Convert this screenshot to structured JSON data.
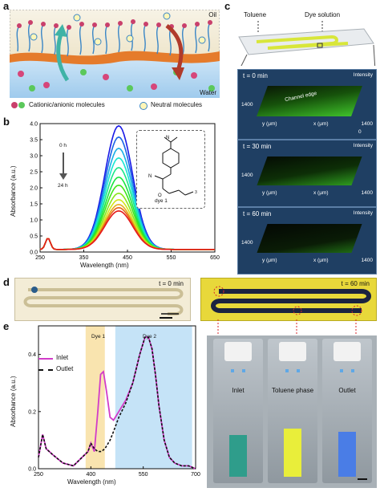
{
  "panel_labels": {
    "a": "a",
    "b": "b",
    "c": "c",
    "d": "d",
    "e": "e"
  },
  "panel_a": {
    "oil": "Oil",
    "water": "Water",
    "legend_cationic": "Cationic/anionic molecules",
    "legend_neutral": "Neutral molecules"
  },
  "panel_b": {
    "time_start": "0 h",
    "time_end": "24 h",
    "dye_label": "dye 1",
    "subscript": "3",
    "chart_data": {
      "type": "line",
      "title": "",
      "xlabel": "Wavelength (nm)",
      "ylabel": "Absorbance (a.u.)",
      "xlim": [
        250,
        650
      ],
      "ylim": [
        0.0,
        4.0
      ],
      "xticks": [
        "250",
        "350",
        "450",
        "550",
        "650"
      ],
      "yticks": [
        "0.0",
        "0.5",
        "1.0",
        "1.5",
        "2.0",
        "2.5",
        "3.0",
        "3.5",
        "4.0"
      ],
      "peak_wavelength": 430,
      "series": [
        {
          "time_index": 0,
          "peak": 3.85
        },
        {
          "time_index": 1,
          "peak": 3.5
        },
        {
          "time_index": 2,
          "peak": 3.15
        },
        {
          "time_index": 3,
          "peak": 2.85
        },
        {
          "time_index": 4,
          "peak": 2.55
        },
        {
          "time_index": 5,
          "peak": 2.25
        },
        {
          "time_index": 6,
          "peak": 2.0
        },
        {
          "time_index": 7,
          "peak": 1.75
        },
        {
          "time_index": 8,
          "peak": 1.55
        },
        {
          "time_index": 9,
          "peak": 1.4
        },
        {
          "time_index": 10,
          "peak": 1.3
        },
        {
          "time_index": 11,
          "peak": 1.2
        }
      ]
    }
  },
  "panel_c": {
    "toluene": "Toluene",
    "dye_solution": "Dye solution",
    "intensity": "Intensity",
    "channel_edge": "Channel edge",
    "y_axis": "y (μm)",
    "x_axis": "x (μm)",
    "tick_1400": "1400",
    "tick_0": "0",
    "frames": [
      {
        "label": "t = 0 min",
        "level": 1.0
      },
      {
        "label": "t = 30 min",
        "level": 0.7
      },
      {
        "label": "t = 60 min",
        "level": 0.35
      }
    ]
  },
  "panel_d": {
    "t0": "t = 0 min",
    "t60": "t = 60 min"
  },
  "panel_e": {
    "band_dye1": "Dye 1",
    "band_dye2": "Dye 2",
    "legend_inlet": "Inlet",
    "legend_outlet": "Outlet",
    "vial_inlet": "Inlet",
    "vial_toluene": "Toluene phase",
    "vial_outlet": "Outlet",
    "chart_data": {
      "type": "line",
      "title": "",
      "xlabel": "Wavelength (nm)",
      "ylabel": "Absorbance (a.u.)",
      "xlim": [
        250,
        700
      ],
      "ylim": [
        0.0,
        0.5
      ],
      "xticks": [
        "250",
        "400",
        "550",
        "700"
      ],
      "yticks": [
        "0.0",
        "0.2",
        "0.4"
      ],
      "colors": {
        "inlet": "#d23cc9",
        "outlet": "#111111"
      },
      "series": [
        {
          "name": "Inlet",
          "x": [
            250,
            262,
            272,
            290,
            320,
            350,
            375,
            392,
            400,
            410,
            420,
            428,
            436,
            445,
            455,
            465,
            480,
            500,
            520,
            540,
            555,
            565,
            575,
            585,
            595,
            610,
            625,
            640,
            660,
            680,
            700
          ],
          "y": [
            0.04,
            0.12,
            0.07,
            0.05,
            0.02,
            0.01,
            0.04,
            0.06,
            0.09,
            0.06,
            0.2,
            0.33,
            0.34,
            0.27,
            0.18,
            0.17,
            0.2,
            0.24,
            0.3,
            0.4,
            0.46,
            0.46,
            0.42,
            0.33,
            0.22,
            0.1,
            0.04,
            0.02,
            0.01,
            0.01,
            0.0
          ]
        },
        {
          "name": "Outlet",
          "x": [
            250,
            262,
            272,
            290,
            320,
            350,
            375,
            392,
            400,
            410,
            420,
            430,
            440,
            455,
            465,
            480,
            500,
            520,
            540,
            555,
            565,
            575,
            585,
            595,
            610,
            625,
            640,
            660,
            680,
            700
          ],
          "y": [
            0.04,
            0.12,
            0.07,
            0.05,
            0.02,
            0.01,
            0.04,
            0.06,
            0.09,
            0.07,
            0.06,
            0.06,
            0.07,
            0.1,
            0.13,
            0.18,
            0.23,
            0.3,
            0.4,
            0.46,
            0.46,
            0.42,
            0.33,
            0.22,
            0.1,
            0.04,
            0.02,
            0.01,
            0.01,
            0.0
          ]
        }
      ]
    }
  }
}
